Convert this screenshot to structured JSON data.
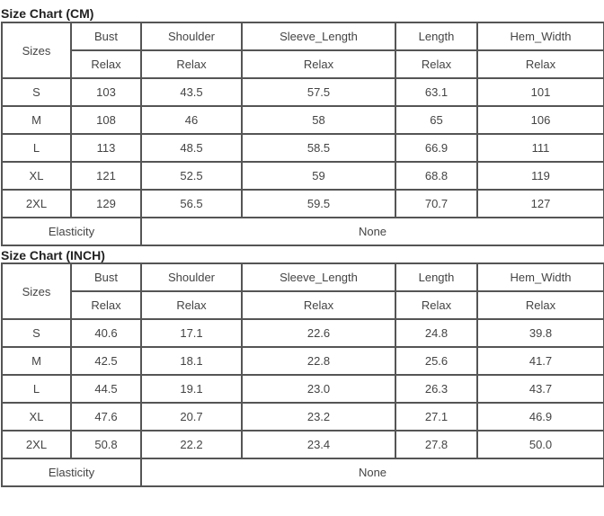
{
  "tables": [
    {
      "title": "Size Chart (CM)",
      "size_header": "Sizes",
      "columns": [
        "Bust",
        "Shoulder",
        "Sleeve_Length",
        "Length",
        "Hem_Width"
      ],
      "sub_header": [
        "Relax",
        "Relax",
        "Relax",
        "Relax",
        "Relax"
      ],
      "rows": [
        {
          "size": "S",
          "values": [
            "103",
            "43.5",
            "57.5",
            "63.1",
            "101"
          ]
        },
        {
          "size": "M",
          "values": [
            "108",
            "46",
            "58",
            "65",
            "106"
          ]
        },
        {
          "size": "L",
          "values": [
            "113",
            "48.5",
            "58.5",
            "66.9",
            "111"
          ]
        },
        {
          "size": "XL",
          "values": [
            "121",
            "52.5",
            "59",
            "68.8",
            "119"
          ]
        },
        {
          "size": "2XL",
          "values": [
            "129",
            "56.5",
            "59.5",
            "70.7",
            "127"
          ]
        }
      ],
      "elasticity_label": "Elasticity",
      "elasticity_value": "None"
    },
    {
      "title": "Size Chart (INCH)",
      "size_header": "Sizes",
      "columns": [
        "Bust",
        "Shoulder",
        "Sleeve_Length",
        "Length",
        "Hem_Width"
      ],
      "sub_header": [
        "Relax",
        "Relax",
        "Relax",
        "Relax",
        "Relax"
      ],
      "rows": [
        {
          "size": "S",
          "values": [
            "40.6",
            "17.1",
            "22.6",
            "24.8",
            "39.8"
          ]
        },
        {
          "size": "M",
          "values": [
            "42.5",
            "18.1",
            "22.8",
            "25.6",
            "41.7"
          ]
        },
        {
          "size": "L",
          "values": [
            "44.5",
            "19.1",
            "23.0",
            "26.3",
            "43.7"
          ]
        },
        {
          "size": "XL",
          "values": [
            "47.6",
            "20.7",
            "23.2",
            "27.1",
            "46.9"
          ]
        },
        {
          "size": "2XL",
          "values": [
            "50.8",
            "22.2",
            "23.4",
            "27.8",
            "50.0"
          ]
        }
      ],
      "elasticity_label": "Elasticity",
      "elasticity_value": "None"
    }
  ]
}
